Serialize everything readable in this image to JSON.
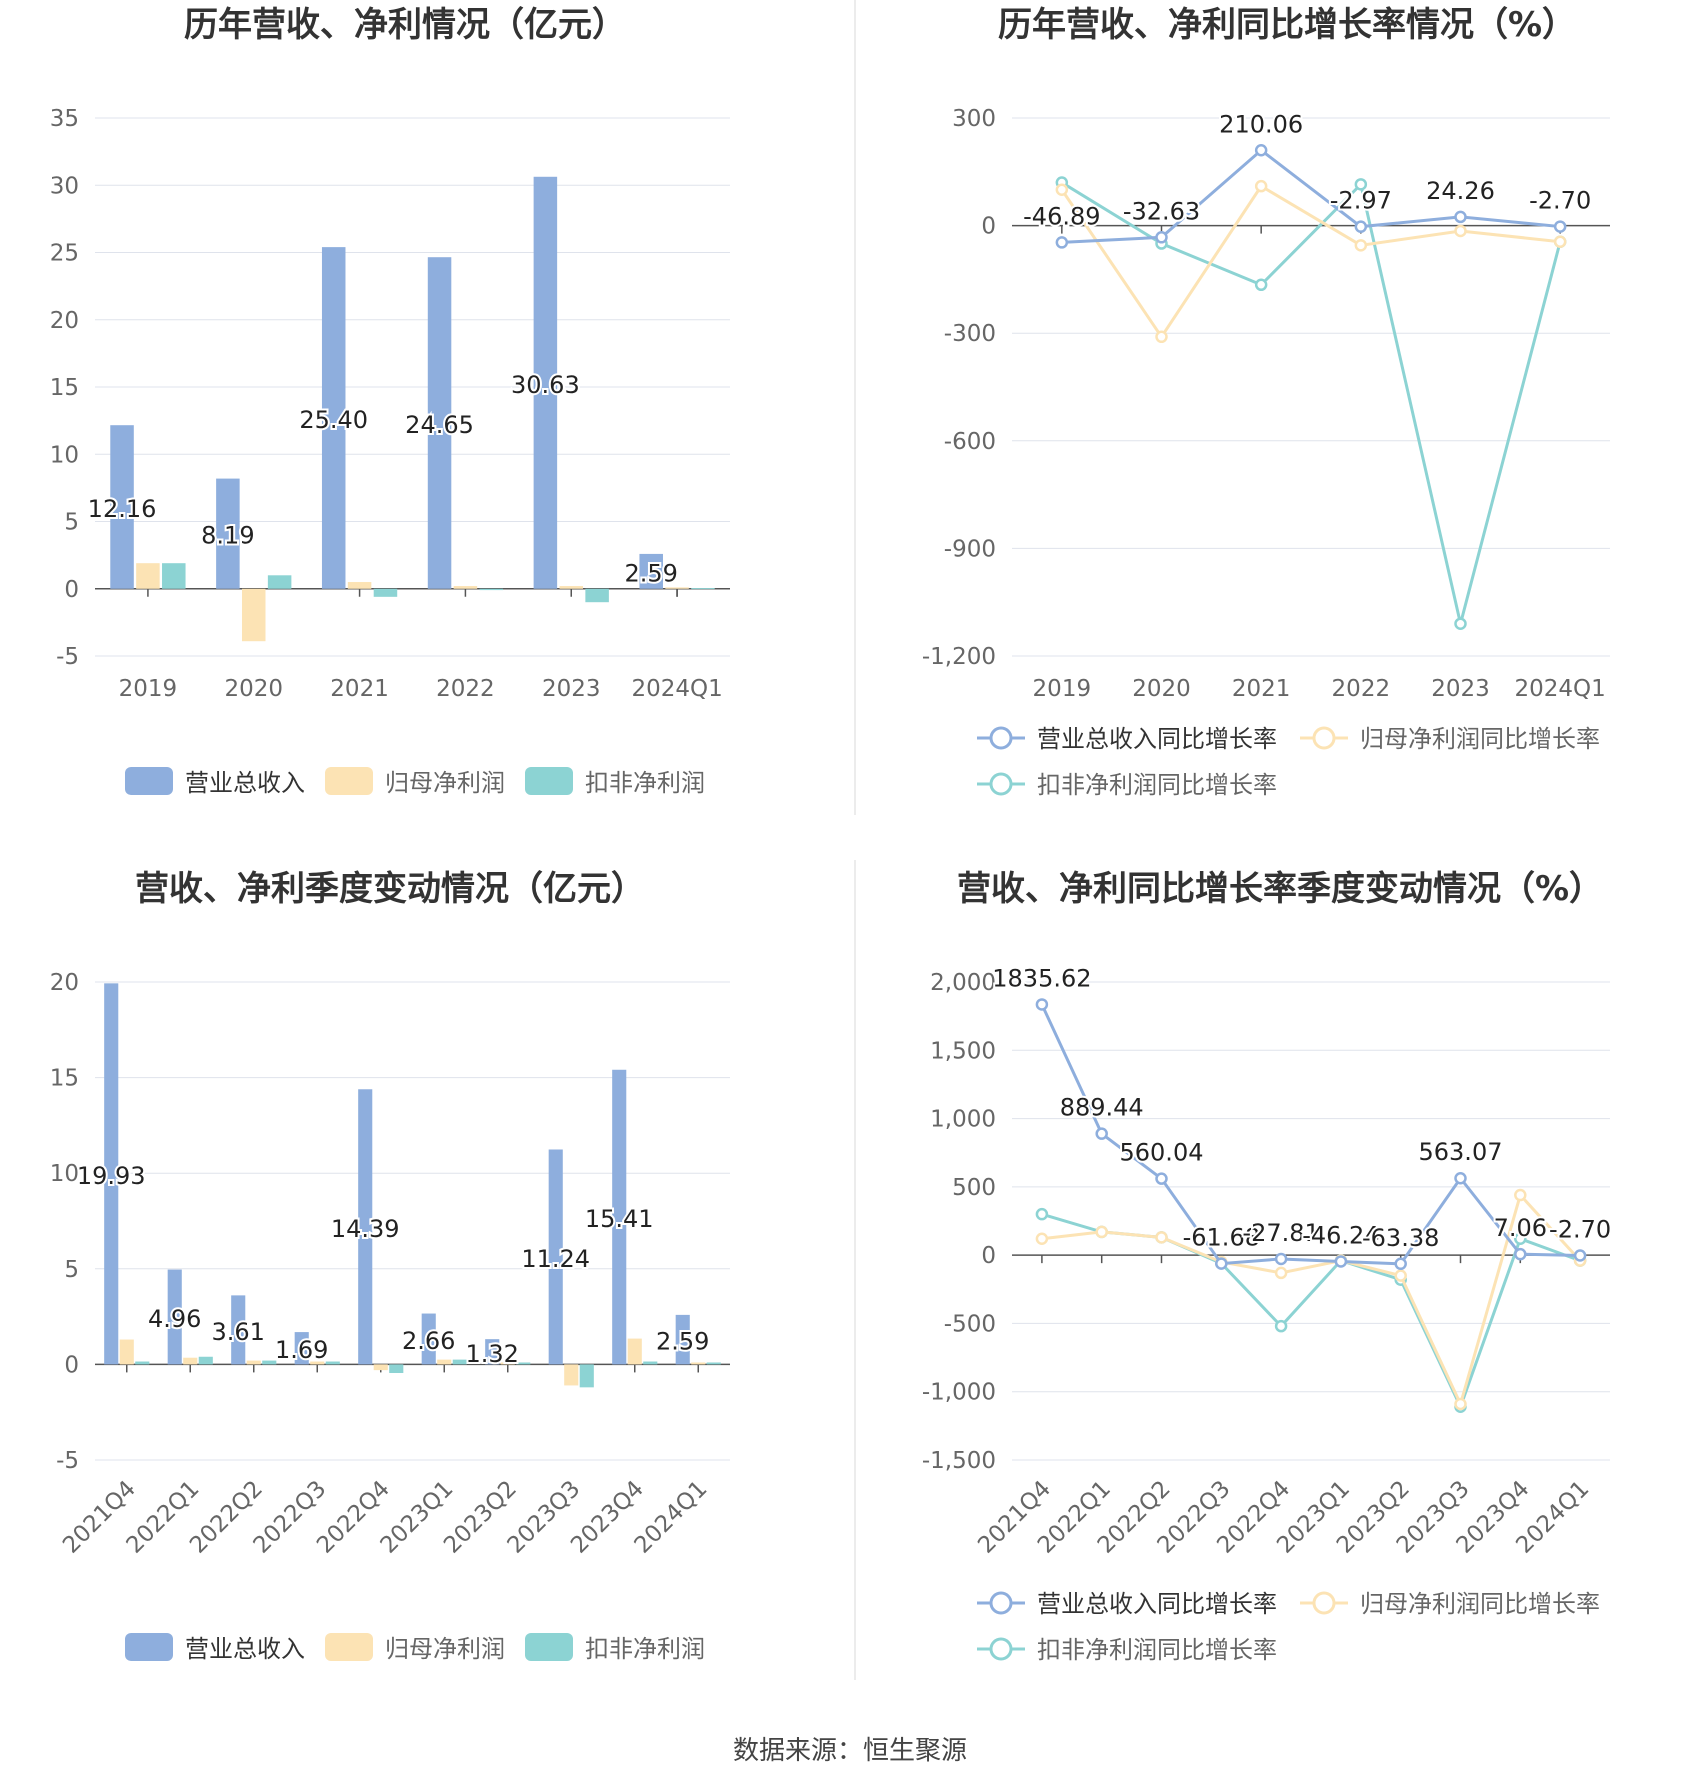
{
  "colors": {
    "revenue": "#8eaedd",
    "net_profit": "#fce3b4",
    "deducted_profit": "#8cd3d3",
    "grid": "#dfe3ec",
    "axis": "#555555",
    "label": "#222222",
    "tick": "#666666",
    "title": "#333333",
    "divider": "#e6e6e6"
  },
  "footer": "数据来源：恒生聚源",
  "chart_data": [
    {
      "type": "bar",
      "title": "历年营收、净利情况（亿元）",
      "categories": [
        "2019",
        "2020",
        "2021",
        "2022",
        "2023",
        "2024Q1"
      ],
      "ylim": [
        -5,
        35
      ],
      "yticks": [
        -5,
        0,
        5,
        10,
        15,
        20,
        25,
        30,
        35
      ],
      "grid": true,
      "legend_position": "bottom",
      "series": [
        {
          "name": "营业总收入",
          "values": [
            12.16,
            8.19,
            25.4,
            24.65,
            30.63,
            2.59
          ],
          "labels": [
            "12.16",
            "8.19",
            "25.40",
            "24.65",
            "30.63",
            "2.59"
          ]
        },
        {
          "name": "归母净利润",
          "values": [
            1.9,
            -3.9,
            0.5,
            0.2,
            0.2,
            0.1
          ]
        },
        {
          "name": "扣非净利润",
          "values": [
            1.9,
            1.0,
            -0.6,
            -0.1,
            -1.0,
            0.05
          ]
        }
      ]
    },
    {
      "type": "line",
      "title": "历年营收、净利同比增长率情况（%）",
      "categories": [
        "2019",
        "2020",
        "2021",
        "2022",
        "2023",
        "2024Q1"
      ],
      "ylim": [
        -1200,
        300
      ],
      "yticks": [
        -1200,
        -900,
        -600,
        -300,
        0,
        300
      ],
      "ytick_labels": [
        "-1,200",
        "-900",
        "-600",
        "-300",
        "0",
        "300"
      ],
      "grid": true,
      "legend_position": "bottom",
      "series": [
        {
          "name": "营业总收入同比增长率",
          "values": [
            -46.89,
            -32.63,
            210.06,
            -2.97,
            24.26,
            -2.7
          ],
          "labels": [
            "-46.89",
            "-32.63",
            "210.06",
            "-2.97",
            "24.26",
            "-2.70"
          ]
        },
        {
          "name": "归母净利润同比增长率",
          "values": [
            100,
            -310,
            110,
            -55,
            -15,
            -45
          ]
        },
        {
          "name": "扣非净利润同比增长率",
          "values": [
            120,
            -50,
            -165,
            115,
            -1110,
            -45
          ]
        }
      ]
    },
    {
      "type": "bar",
      "title": "营收、净利季度变动情况（亿元）",
      "categories": [
        "2021Q4",
        "2022Q1",
        "2022Q2",
        "2022Q3",
        "2022Q4",
        "2023Q1",
        "2023Q2",
        "2023Q3",
        "2023Q4",
        "2024Q1"
      ],
      "ylim": [
        -5,
        20
      ],
      "yticks": [
        -5,
        0,
        5,
        10,
        15,
        20
      ],
      "grid": true,
      "legend_position": "bottom",
      "series": [
        {
          "name": "营业总收入",
          "values": [
            19.93,
            4.96,
            3.61,
            1.69,
            14.39,
            2.66,
            1.32,
            11.24,
            15.41,
            2.59
          ],
          "labels": [
            "19.93",
            "4.96",
            "3.61",
            "1.69",
            "14.39",
            "2.66",
            "1.32",
            "11.24",
            "15.41",
            "2.59"
          ]
        },
        {
          "name": "归母净利润",
          "values": [
            1.3,
            0.35,
            0.2,
            0.15,
            -0.3,
            0.25,
            0.1,
            -1.1,
            1.35,
            0.1
          ]
        },
        {
          "name": "扣非净利润",
          "values": [
            0.15,
            0.4,
            0.2,
            0.15,
            -0.45,
            0.25,
            0.1,
            -1.2,
            0.15,
            0.1
          ]
        }
      ]
    },
    {
      "type": "line",
      "title": "营收、净利同比增长率季度变动情况（%）",
      "categories": [
        "2021Q4",
        "2022Q1",
        "2022Q2",
        "2022Q3",
        "2022Q4",
        "2023Q1",
        "2023Q2",
        "2023Q3",
        "2023Q4",
        "2024Q1"
      ],
      "ylim": [
        -1500,
        2000
      ],
      "yticks": [
        -1500,
        -1000,
        -500,
        0,
        500,
        1000,
        1500,
        2000
      ],
      "ytick_labels": [
        "-1,500",
        "-1,000",
        "-500",
        "0",
        "500",
        "1,000",
        "1,500",
        "2,000"
      ],
      "grid": true,
      "legend_position": "bottom",
      "series": [
        {
          "name": "营业总收入同比增长率",
          "values": [
            1835.62,
            889.44,
            560.04,
            -61.68,
            -27.81,
            -46.24,
            -63.38,
            563.07,
            7.06,
            -2.7
          ],
          "labels": [
            "1835.62",
            "889.44",
            "560.04",
            "-61.68",
            "-27.81",
            "-46.24",
            "-63.38",
            "563.07",
            "7.06",
            "-2.70"
          ]
        },
        {
          "name": "归母净利润同比增长率",
          "values": [
            120,
            170,
            130,
            -50,
            -130,
            -40,
            -150,
            -1090,
            440,
            -40
          ]
        },
        {
          "name": "扣非净利润同比增长率",
          "values": [
            300,
            170,
            130,
            -60,
            -520,
            -40,
            -180,
            -1110,
            120,
            -40
          ]
        }
      ]
    }
  ]
}
